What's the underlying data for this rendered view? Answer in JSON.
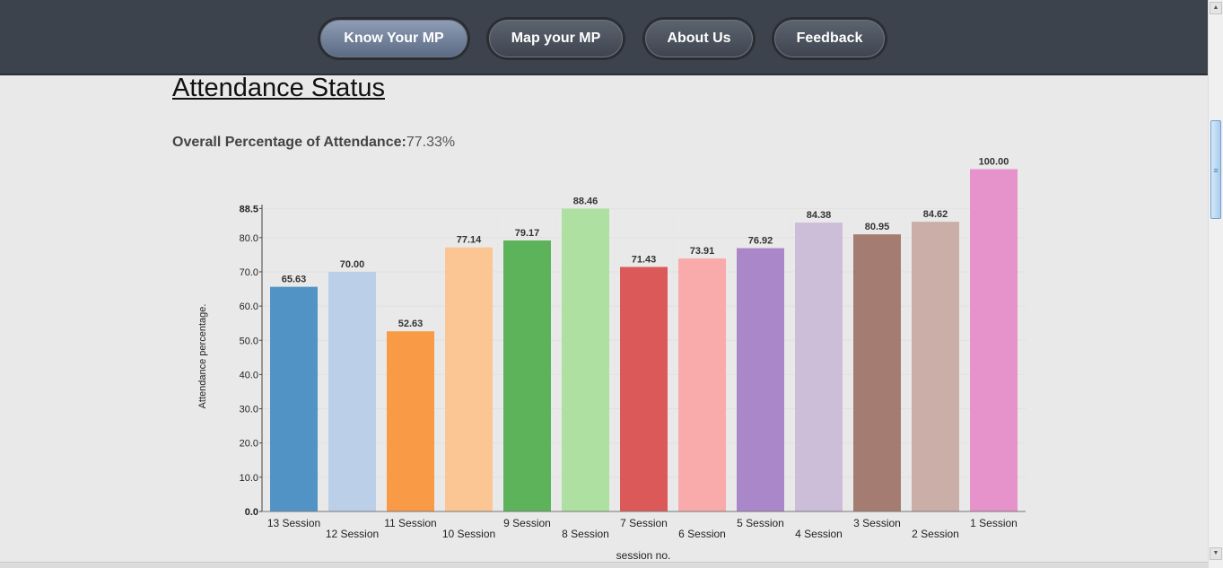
{
  "nav": {
    "items": [
      {
        "label": "Know Your MP",
        "active": true
      },
      {
        "label": "Map your MP",
        "active": false
      },
      {
        "label": "About Us",
        "active": false
      },
      {
        "label": "Feedback",
        "active": false
      }
    ]
  },
  "page": {
    "title": "Attendance Status",
    "overall_label": "Overall Percentage of Attendance:",
    "overall_value": "77.33%"
  },
  "chart_data": {
    "type": "bar",
    "title": "",
    "xlabel": "session no.",
    "ylabel": "Attendance percentage.",
    "ylim": [
      0,
      88.5
    ],
    "yticks": [
      "0.0",
      "10.0",
      "20.0",
      "30.0",
      "40.0",
      "50.0",
      "60.0",
      "70.0",
      "80.0",
      "88.5"
    ],
    "grid": true,
    "categories": [
      "13 Session",
      "12 Session",
      "11 Session",
      "10 Session",
      "9 Session",
      "8 Session",
      "7 Session",
      "6 Session",
      "5 Session",
      "4 Session",
      "3 Session",
      "2 Session",
      "1 Session"
    ],
    "values": [
      65.63,
      70.0,
      52.63,
      77.14,
      79.17,
      88.46,
      71.43,
      73.91,
      76.92,
      84.38,
      80.95,
      84.62,
      100.0
    ],
    "value_labels": [
      "65.63",
      "70.00",
      "52.63",
      "77.14",
      "79.17",
      "88.46",
      "71.43",
      "73.91",
      "76.92",
      "84.38",
      "80.95",
      "84.62",
      "100.00"
    ],
    "colors": [
      "#5193c5",
      "#bccfe9",
      "#f89a46",
      "#fbc693",
      "#5db35a",
      "#aee1a1",
      "#db5959",
      "#f9aaaa",
      "#aa87c8",
      "#ccbdd8",
      "#a47c72",
      "#cbaea7",
      "#e693cb"
    ]
  }
}
